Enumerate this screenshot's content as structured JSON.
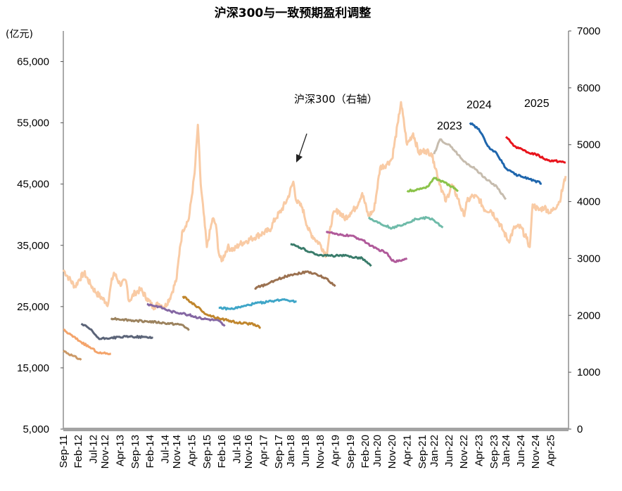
{
  "chart_data": {
    "type": "line",
    "title": "沪深300与一致预期盈利调整",
    "left_axis": {
      "unit": "(亿元)",
      "range": [
        5000,
        70000
      ],
      "ticks": [
        "5,000",
        "15,000",
        "25,000",
        "35,000",
        "45,000",
        "55,000",
        "65,000"
      ],
      "tick_values": [
        5000,
        15000,
        25000,
        35000,
        45000,
        55000,
        65000
      ]
    },
    "right_axis": {
      "range": [
        0,
        7000
      ],
      "ticks": [
        "0",
        "1000",
        "2000",
        "3000",
        "4000",
        "5000",
        "6000",
        "7000"
      ],
      "tick_values": [
        0,
        1000,
        2000,
        3000,
        4000,
        5000,
        6000,
        7000
      ]
    },
    "x_axis": {
      "range": [
        "2011-09",
        "2025-09"
      ],
      "tick_labels": [
        "Sep-11",
        "Feb-12",
        "Jul-12",
        "Nov-12",
        "Apr-13",
        "Sep-13",
        "Feb-14",
        "Jul-14",
        "Nov-14",
        "Apr-15",
        "Sep-15",
        "Feb-16",
        "Jul-16",
        "Nov-16",
        "Apr-17",
        "Sep-17",
        "Jan-18",
        "Jun-18",
        "Nov-18",
        "Apr-19",
        "Sep-19",
        "Feb-20",
        "Jun-20",
        "Nov-20",
        "Apr-21",
        "Sep-21",
        "Jan-22",
        "Jun-22",
        "Nov-22",
        "Apr-23",
        "Sep-23",
        "Jan-24",
        "Jun-24",
        "Nov-24",
        "Apr-25"
      ],
      "tick_times": [
        2011.67,
        2012.08,
        2012.5,
        2012.83,
        2013.25,
        2013.67,
        2014.08,
        2014.5,
        2014.83,
        2015.25,
        2015.67,
        2016.08,
        2016.5,
        2016.83,
        2017.25,
        2017.67,
        2018.0,
        2018.42,
        2018.83,
        2019.25,
        2019.67,
        2020.08,
        2020.42,
        2020.83,
        2021.25,
        2021.67,
        2022.0,
        2022.42,
        2022.83,
        2023.25,
        2023.67,
        2024.0,
        2024.42,
        2024.83,
        2025.25
      ]
    },
    "annotations": {
      "index_label": "沪深300（右轴）",
      "year_labels": [
        {
          "text": "2023"
        },
        {
          "text": "2024"
        },
        {
          "text": "2025"
        }
      ]
    },
    "index_series": {
      "name": "沪深300",
      "axis": "right",
      "color": "#f9cba5",
      "points": [
        [
          2011.67,
          2800
        ],
        [
          2011.83,
          2650
        ],
        [
          2012.0,
          2500
        ],
        [
          2012.08,
          2600
        ],
        [
          2012.25,
          2750
        ],
        [
          2012.42,
          2550
        ],
        [
          2012.58,
          2400
        ],
        [
          2012.75,
          2300
        ],
        [
          2012.92,
          2200
        ],
        [
          2013.0,
          2550
        ],
        [
          2013.08,
          2750
        ],
        [
          2013.25,
          2550
        ],
        [
          2013.42,
          2600
        ],
        [
          2013.5,
          2250
        ],
        [
          2013.67,
          2400
        ],
        [
          2013.83,
          2450
        ],
        [
          2014.0,
          2300
        ],
        [
          2014.17,
          2150
        ],
        [
          2014.33,
          2200
        ],
        [
          2014.5,
          2150
        ],
        [
          2014.67,
          2350
        ],
        [
          2014.83,
          2650
        ],
        [
          2014.92,
          3200
        ],
        [
          2015.0,
          3500
        ],
        [
          2015.17,
          3700
        ],
        [
          2015.33,
          4500
        ],
        [
          2015.42,
          5350
        ],
        [
          2015.5,
          4300
        ],
        [
          2015.58,
          3800
        ],
        [
          2015.67,
          3200
        ],
        [
          2015.83,
          3700
        ],
        [
          2015.92,
          3600
        ],
        [
          2016.0,
          3100
        ],
        [
          2016.08,
          2950
        ],
        [
          2016.25,
          3200
        ],
        [
          2016.42,
          3150
        ],
        [
          2016.58,
          3250
        ],
        [
          2016.75,
          3300
        ],
        [
          2016.92,
          3350
        ],
        [
          2017.08,
          3400
        ],
        [
          2017.25,
          3450
        ],
        [
          2017.42,
          3500
        ],
        [
          2017.58,
          3700
        ],
        [
          2017.75,
          3850
        ],
        [
          2017.92,
          4050
        ],
        [
          2018.08,
          4350
        ],
        [
          2018.17,
          4000
        ],
        [
          2018.33,
          3900
        ],
        [
          2018.5,
          3500
        ],
        [
          2018.67,
          3350
        ],
        [
          2018.83,
          3250
        ],
        [
          2019.0,
          3050
        ],
        [
          2019.17,
          3750
        ],
        [
          2019.33,
          3850
        ],
        [
          2019.5,
          3700
        ],
        [
          2019.67,
          3800
        ],
        [
          2019.83,
          3900
        ],
        [
          2020.0,
          4150
        ],
        [
          2020.17,
          3750
        ],
        [
          2020.33,
          3850
        ],
        [
          2020.5,
          4600
        ],
        [
          2020.67,
          4650
        ],
        [
          2020.83,
          4750
        ],
        [
          2021.0,
          5400
        ],
        [
          2021.08,
          5750
        ],
        [
          2021.25,
          5000
        ],
        [
          2021.42,
          5200
        ],
        [
          2021.58,
          4850
        ],
        [
          2021.75,
          4900
        ],
        [
          2021.92,
          4850
        ],
        [
          2022.0,
          4700
        ],
        [
          2022.17,
          4300
        ],
        [
          2022.33,
          4000
        ],
        [
          2022.5,
          4300
        ],
        [
          2022.67,
          4050
        ],
        [
          2022.83,
          3750
        ],
        [
          2022.92,
          4000
        ],
        [
          2023.08,
          4100
        ],
        [
          2023.25,
          4050
        ],
        [
          2023.42,
          3850
        ],
        [
          2023.58,
          3850
        ],
        [
          2023.75,
          3700
        ],
        [
          2023.92,
          3500
        ],
        [
          2024.08,
          3300
        ],
        [
          2024.25,
          3550
        ],
        [
          2024.42,
          3550
        ],
        [
          2024.58,
          3350
        ],
        [
          2024.67,
          3200
        ],
        [
          2024.75,
          3950
        ],
        [
          2024.92,
          3850
        ],
        [
          2025.08,
          3900
        ],
        [
          2025.25,
          3800
        ],
        [
          2025.5,
          4000
        ],
        [
          2025.67,
          4450
        ]
      ]
    },
    "forecast_series": [
      {
        "color": "#cc9966",
        "axis": "left",
        "points": [
          [
            2011.67,
            17800
          ],
          [
            2011.92,
            17000
          ],
          [
            2012.17,
            16300
          ]
        ]
      },
      {
        "color": "#f4a46b",
        "axis": "left",
        "points": [
          [
            2011.67,
            21200
          ],
          [
            2012.17,
            19200
          ],
          [
            2012.67,
            17400
          ],
          [
            2013.0,
            17300
          ]
        ]
      },
      {
        "color": "#5b6478",
        "axis": "left",
        "points": [
          [
            2012.17,
            22200
          ],
          [
            2012.42,
            21300
          ],
          [
            2012.67,
            19700
          ],
          [
            2013.0,
            19900
          ],
          [
            2013.5,
            20100
          ],
          [
            2014.0,
            20000
          ],
          [
            2014.17,
            19900
          ]
        ]
      },
      {
        "color": "#9c835f",
        "axis": "left",
        "points": [
          [
            2013.0,
            23100
          ],
          [
            2013.33,
            22900
          ],
          [
            2013.67,
            22700
          ],
          [
            2014.0,
            22600
          ],
          [
            2014.5,
            22300
          ],
          [
            2015.0,
            22000
          ],
          [
            2015.17,
            21100
          ]
        ]
      },
      {
        "color": "#8467a3",
        "axis": "left",
        "points": [
          [
            2014.0,
            25400
          ],
          [
            2014.33,
            25000
          ],
          [
            2014.67,
            24200
          ],
          [
            2015.0,
            23900
          ],
          [
            2015.5,
            23100
          ],
          [
            2016.0,
            22700
          ],
          [
            2016.17,
            21800
          ]
        ]
      },
      {
        "color": "#c0862d",
        "axis": "left",
        "points": [
          [
            2015.0,
            26700
          ],
          [
            2015.33,
            25300
          ],
          [
            2015.67,
            23700
          ],
          [
            2016.0,
            23100
          ],
          [
            2016.5,
            22400
          ],
          [
            2017.0,
            22100
          ],
          [
            2017.17,
            21500
          ]
        ]
      },
      {
        "color": "#3fa6c8",
        "axis": "left",
        "points": [
          [
            2016.0,
            24800
          ],
          [
            2016.33,
            24600
          ],
          [
            2016.67,
            25000
          ],
          [
            2017.0,
            25500
          ],
          [
            2017.5,
            25900
          ],
          [
            2017.83,
            26200
          ],
          [
            2018.17,
            25800
          ]
        ]
      },
      {
        "color": "#9b7150",
        "axis": "left",
        "points": [
          [
            2017.0,
            28000
          ],
          [
            2017.33,
            28600
          ],
          [
            2017.67,
            29500
          ],
          [
            2018.0,
            30200
          ],
          [
            2018.5,
            30700
          ],
          [
            2019.0,
            29600
          ],
          [
            2019.25,
            28300
          ]
        ]
      },
      {
        "color": "#3a7c6b",
        "axis": "left",
        "points": [
          [
            2018.0,
            35200
          ],
          [
            2018.33,
            34500
          ],
          [
            2018.67,
            33600
          ],
          [
            2019.0,
            33300
          ],
          [
            2019.5,
            33300
          ],
          [
            2020.0,
            32900
          ],
          [
            2020.25,
            31600
          ]
        ]
      },
      {
        "color": "#b05a9a",
        "axis": "left",
        "points": [
          [
            2019.0,
            37300
          ],
          [
            2019.33,
            36700
          ],
          [
            2019.67,
            36600
          ],
          [
            2020.0,
            35900
          ],
          [
            2020.33,
            34600
          ],
          [
            2020.67,
            33800
          ],
          [
            2020.83,
            32500
          ],
          [
            2021.0,
            32400
          ],
          [
            2021.25,
            32900
          ]
        ]
      },
      {
        "color": "#6fbba9",
        "axis": "left",
        "points": [
          [
            2020.17,
            39500
          ],
          [
            2020.5,
            38600
          ],
          [
            2020.83,
            37800
          ],
          [
            2021.17,
            38500
          ],
          [
            2021.5,
            39300
          ],
          [
            2021.83,
            39500
          ],
          [
            2022.0,
            39100
          ],
          [
            2022.25,
            37900
          ]
        ]
      },
      {
        "color": "#8bc34a",
        "axis": "left",
        "points": [
          [
            2021.25,
            43900
          ],
          [
            2021.5,
            44000
          ],
          [
            2021.83,
            44600
          ],
          [
            2022.0,
            46000
          ],
          [
            2022.17,
            45600
          ],
          [
            2022.5,
            44600
          ],
          [
            2022.67,
            43800
          ]
        ]
      },
      {
        "color": "#c6bcae",
        "axis": "left",
        "points": [
          [
            2022.0,
            49900
          ],
          [
            2022.17,
            52300
          ],
          [
            2022.5,
            51000
          ],
          [
            2022.83,
            48700
          ],
          [
            2023.17,
            47400
          ],
          [
            2023.5,
            45600
          ],
          [
            2023.75,
            44600
          ],
          [
            2024.0,
            42500
          ]
        ]
      },
      {
        "color": "#1f66ad",
        "axis": "left",
        "points": [
          [
            2023.0,
            55000
          ],
          [
            2023.25,
            54000
          ],
          [
            2023.5,
            51200
          ],
          [
            2023.75,
            50000
          ],
          [
            2024.0,
            47600
          ],
          [
            2024.25,
            46600
          ],
          [
            2024.67,
            45800
          ],
          [
            2025.0,
            45100
          ]
        ]
      },
      {
        "color": "#e8141c",
        "axis": "left",
        "points": [
          [
            2024.0,
            52700
          ],
          [
            2024.25,
            51200
          ],
          [
            2024.58,
            50200
          ],
          [
            2024.83,
            49900
          ],
          [
            2025.17,
            48900
          ],
          [
            2025.5,
            48700
          ],
          [
            2025.67,
            48500
          ]
        ]
      }
    ]
  }
}
